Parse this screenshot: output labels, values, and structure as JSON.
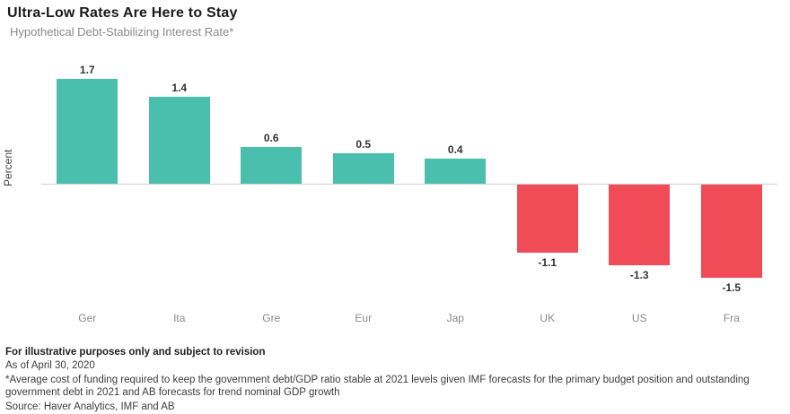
{
  "header": {
    "title": "Ultra-Low Rates Are Here to Stay",
    "subtitle": "Hypothetical Debt-Stabilizing Interest Rate*"
  },
  "chart_data": {
    "type": "bar",
    "title": "Ultra-Low Rates Are Here to Stay",
    "subtitle": "Hypothetical Debt-Stabilizing Interest Rate*",
    "categories": [
      "Ger",
      "Ita",
      "Gre",
      "Eur",
      "Jap",
      "UK",
      "US",
      "Fra"
    ],
    "values": [
      1.7,
      1.4,
      0.6,
      0.5,
      0.4,
      -1.1,
      -1.3,
      -1.5
    ],
    "value_labels": [
      "1.7",
      "1.4",
      "0.6",
      "0.5",
      "0.4",
      "-1.1",
      "-1.3",
      "-1.5"
    ],
    "xlabel": "",
    "ylabel": "Percent",
    "ylim": [
      -2,
      2.2
    ],
    "grid": false,
    "legend": "none",
    "positive_color": "#4abfae",
    "negative_color": "#f24b58",
    "baseline_color": "#cfcfcf"
  },
  "footer": {
    "disclaimer": "For illustrative purposes only and subject to revision",
    "as_of": "As of April 30, 2020",
    "footnote": "*Average cost of funding required to keep the government debt/GDP ratio stable at 2021 levels given IMF forecasts for the primary budget position and outstanding government debt in 2021 and AB forecasts for trend nominal GDP growth",
    "source": "Source: Haver Analytics, IMF and AB"
  }
}
